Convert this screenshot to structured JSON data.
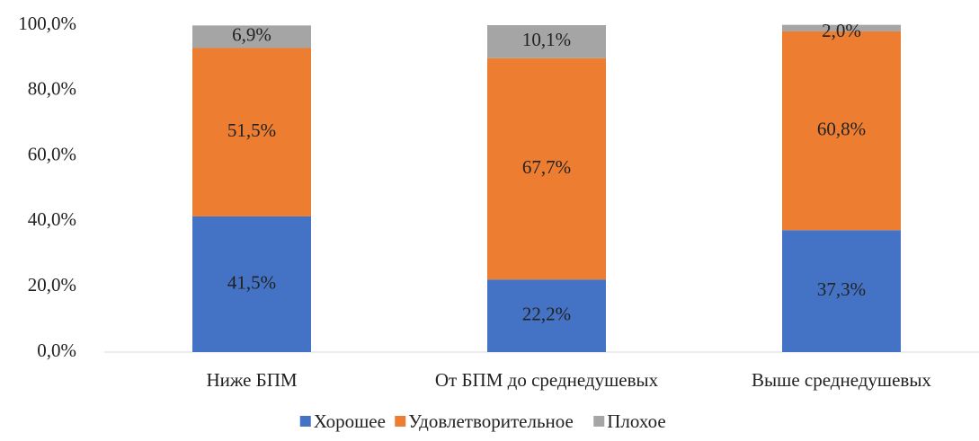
{
  "chart_data": {
    "type": "stacked_bar",
    "categories": [
      "Ниже БПМ",
      "От БПМ до среднедушевых",
      "Выше среднедушевых"
    ],
    "series": [
      {
        "name": "Хорошее",
        "color": "#4472c4",
        "values": [
          41.5,
          22.2,
          37.3
        ],
        "value_labels": [
          "41,5%",
          "22,2%",
          "37,3%"
        ]
      },
      {
        "name": "Удовлетворительное",
        "color": "#ed7d31",
        "values": [
          51.5,
          67.7,
          60.8
        ],
        "value_labels": [
          "51,5%",
          "67,7%",
          "60,8%"
        ]
      },
      {
        "name": "Плохое",
        "color": "#a5a5a5",
        "values": [
          6.9,
          10.1,
          2.0
        ],
        "value_labels": [
          "6,9%",
          "10,1%",
          "2,0%"
        ]
      }
    ],
    "ylim": [
      0,
      100
    ],
    "yticks": [
      {
        "value": 0,
        "label": "0,0%"
      },
      {
        "value": 20,
        "label": "20,0%"
      },
      {
        "value": 40,
        "label": "40,0%"
      },
      {
        "value": 60,
        "label": "60,0%"
      },
      {
        "value": 80,
        "label": "80,0%"
      },
      {
        "value": 100,
        "label": "100,0%"
      }
    ],
    "legend": "bottom"
  }
}
